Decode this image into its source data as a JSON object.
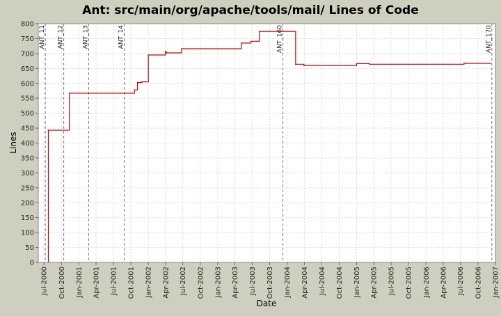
{
  "chart_data": {
    "type": "line",
    "title": "Ant: src/main/org/apache/tools/mail/ Lines of Code",
    "xlabel": "Date",
    "ylabel": "Lines",
    "ylim": [
      0,
      800
    ],
    "y_ticks": [
      0,
      50,
      100,
      150,
      200,
      250,
      300,
      350,
      400,
      450,
      500,
      550,
      600,
      650,
      700,
      750,
      800
    ],
    "xlim": [
      "2000-06-01",
      "2007-01-01"
    ],
    "x_ticks": [
      {
        "date": "2000-07-01",
        "label": "Jul-2000"
      },
      {
        "date": "2000-10-01",
        "label": "Oct-2000"
      },
      {
        "date": "2001-01-01",
        "label": "Jan-2001"
      },
      {
        "date": "2001-04-01",
        "label": "Apr-2001"
      },
      {
        "date": "2001-07-01",
        "label": "Jul-2001"
      },
      {
        "date": "2001-10-01",
        "label": "Oct-2001"
      },
      {
        "date": "2002-01-01",
        "label": "Jan-2002"
      },
      {
        "date": "2002-04-01",
        "label": "Apr-2002"
      },
      {
        "date": "2002-07-01",
        "label": "Jul-2002"
      },
      {
        "date": "2002-10-01",
        "label": "Oct-2002"
      },
      {
        "date": "2003-01-01",
        "label": "Jan-2003"
      },
      {
        "date": "2003-04-01",
        "label": "Apr-2003"
      },
      {
        "date": "2003-07-01",
        "label": "Jul-2003"
      },
      {
        "date": "2003-10-01",
        "label": "Oct-2003"
      },
      {
        "date": "2004-01-01",
        "label": "Jan-2004"
      },
      {
        "date": "2004-04-01",
        "label": "Apr-2004"
      },
      {
        "date": "2004-07-01",
        "label": "Jul-2004"
      },
      {
        "date": "2004-10-01",
        "label": "Oct-2004"
      },
      {
        "date": "2005-01-01",
        "label": "Jan-2005"
      },
      {
        "date": "2005-04-01",
        "label": "Apr-2005"
      },
      {
        "date": "2005-07-01",
        "label": "Jul-2005"
      },
      {
        "date": "2005-10-01",
        "label": "Oct-2005"
      },
      {
        "date": "2006-01-01",
        "label": "Jan-2006"
      },
      {
        "date": "2006-04-01",
        "label": "Apr-2006"
      },
      {
        "date": "2006-07-01",
        "label": "Jul-2006"
      },
      {
        "date": "2006-10-01",
        "label": "Oct-2006"
      },
      {
        "date": "2007-01-01",
        "label": "Jan-2007"
      }
    ],
    "grid": true,
    "series": [
      {
        "color": "#cc0000",
        "step": true,
        "points": [
          {
            "x": "2000-07-23",
            "y": 0
          },
          {
            "x": "2000-07-24",
            "y": 443
          },
          {
            "x": "2000-11-12",
            "y": 567
          },
          {
            "x": "2001-10-20",
            "y": 578
          },
          {
            "x": "2001-11-05",
            "y": 603
          },
          {
            "x": "2001-11-28",
            "y": 605
          },
          {
            "x": "2002-01-01",
            "y": 695
          },
          {
            "x": "2002-04-01",
            "y": 707
          },
          {
            "x": "2002-04-05",
            "y": 702
          },
          {
            "x": "2002-06-25",
            "y": 716
          },
          {
            "x": "2003-05-05",
            "y": 735
          },
          {
            "x": "2003-06-25",
            "y": 741
          },
          {
            "x": "2003-08-08",
            "y": 774
          },
          {
            "x": "2004-02-15",
            "y": 664
          },
          {
            "x": "2004-03-30",
            "y": 660
          },
          {
            "x": "2005-01-01",
            "y": 666
          },
          {
            "x": "2005-03-10",
            "y": 664
          },
          {
            "x": "2006-07-20",
            "y": 667
          },
          {
            "x": "2006-12-05",
            "y": 667
          }
        ]
      }
    ],
    "markers": [
      {
        "date": "2000-07-08",
        "label": "ANT_11"
      },
      {
        "date": "2000-10-13",
        "label": "ANT_12"
      },
      {
        "date": "2001-02-21",
        "label": "ANT_13"
      },
      {
        "date": "2001-08-27",
        "label": "ANT_14"
      },
      {
        "date": "2003-12-10",
        "label": "ANT_160"
      },
      {
        "date": "2006-12-13",
        "label": "ANT_170"
      }
    ]
  }
}
